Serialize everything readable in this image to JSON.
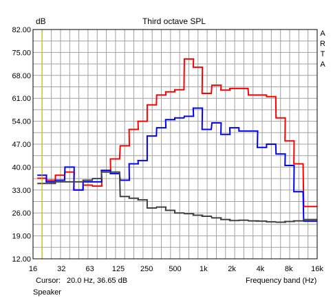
{
  "chart_data": {
    "type": "line",
    "title": "Third octave SPL",
    "ylabel": "dB",
    "xlabel": "Frequency band (Hz)",
    "y_scale": "linear",
    "x_scale": "log",
    "ylim": [
      12.0,
      82.0
    ],
    "xlim": [
      16,
      20000
    ],
    "grid": true,
    "watermark": [
      "A",
      "R",
      "T",
      "A"
    ],
    "y_ticks": [
      "82.00",
      "75.00",
      "68.00",
      "61.00",
      "54.00",
      "47.00",
      "40.00",
      "33.00",
      "26.00",
      "19.00",
      "12.00"
    ],
    "x_ticks": [
      "16",
      "32",
      "63",
      "125",
      "250",
      "500",
      "1k",
      "2k",
      "4k",
      "8k",
      "16k"
    ],
    "bands_hz": [
      20,
      25,
      31.5,
      40,
      50,
      63,
      80,
      100,
      125,
      160,
      200,
      250,
      315,
      400,
      500,
      630,
      800,
      1000,
      1250,
      1600,
      2000,
      2500,
      3150,
      4000,
      5000,
      6300,
      8000,
      10000,
      12500,
      16000,
      20000
    ],
    "cursor_hz": 20,
    "series": [
      {
        "color": "#ff0000",
        "values": [
          36.6,
          36.0,
          37.5,
          38.5,
          33.0,
          34.5,
          34.2,
          39.0,
          42.5,
          46.5,
          51.5,
          54.0,
          59.0,
          62.0,
          63.0,
          63.6,
          73.0,
          70.5,
          62.5,
          65.0,
          63.5,
          64.0,
          64.0,
          62.0,
          62.0,
          61.5,
          55.0,
          48.0,
          41.0,
          28.0,
          28.0
        ]
      },
      {
        "color": "#0000ff",
        "values": [
          37.5,
          35.5,
          36.0,
          40.0,
          33.0,
          35.5,
          35.5,
          39.0,
          38.0,
          36.0,
          41.0,
          42.0,
          49.5,
          52.0,
          54.5,
          55.0,
          55.5,
          58.0,
          51.5,
          53.5,
          50.0,
          52.0,
          51.0,
          51.0,
          46.0,
          47.0,
          44.0,
          40.5,
          32.5,
          23.5,
          23.5
        ]
      },
      {
        "color": "#404040",
        "values": [
          35.0,
          35.0,
          35.5,
          35.5,
          35.5,
          36.0,
          36.5,
          38.5,
          38.5,
          31.0,
          30.5,
          30.0,
          27.5,
          27.8,
          26.8,
          26.0,
          25.8,
          25.3,
          25.0,
          24.5,
          24.0,
          23.7,
          23.8,
          23.6,
          23.5,
          23.3,
          23.2,
          23.4,
          23.6,
          24.0,
          24.0
        ]
      }
    ]
  },
  "status": {
    "cursor_label": "Cursor:",
    "cursor_value": "20.0 Hz, 36.65 dB",
    "freq_band_label": "Frequency band (Hz)",
    "source": "Speaker"
  },
  "colors": {
    "grid": "#a0a0a0",
    "cursor": "#d4c400",
    "frame": "#000000"
  }
}
